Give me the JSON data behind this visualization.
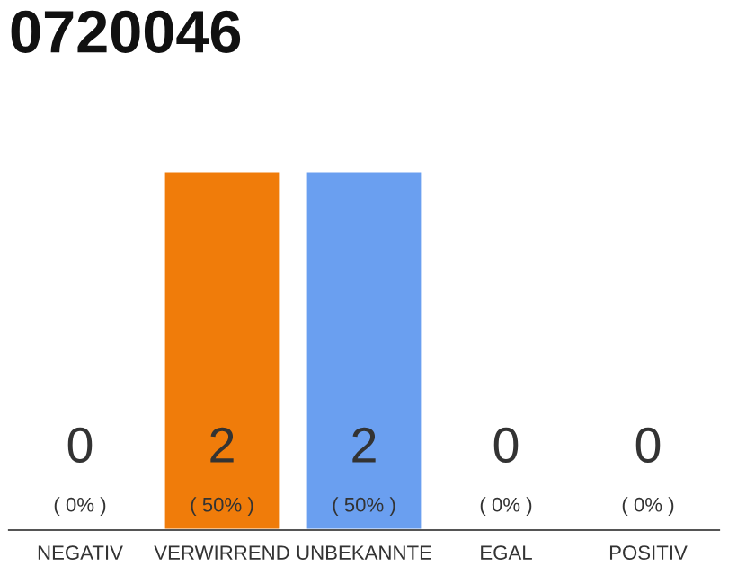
{
  "chart_data": {
    "type": "bar",
    "title": "0720046",
    "categories": [
      "NEGATIV",
      "VERWIRREND",
      "UNBEKANNTE",
      "EGAL",
      "POSITIV"
    ],
    "values": [
      0,
      2,
      2,
      0,
      0
    ],
    "colors": [
      "#efefef",
      "#f07c0a",
      "#6a9ff0",
      "#efefef",
      "#efefef"
    ],
    "value_labels": [
      "0\n( 0% )",
      "2\n( 50% )",
      "2\n( 50% )",
      "0\n( 0% )",
      "0\n( 0% )"
    ],
    "data_labels": true,
    "grid": false,
    "legend": false
  }
}
